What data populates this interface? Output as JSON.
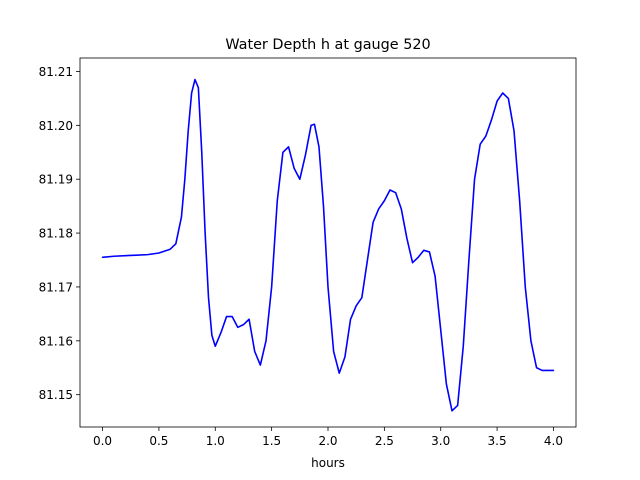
{
  "chart_data": {
    "type": "line",
    "title": "Water Depth h at gauge 520",
    "xlabel": "hours",
    "ylabel": "",
    "xlim": [
      -0.2,
      4.2
    ],
    "ylim": [
      81.144,
      81.2125
    ],
    "xticks": [
      0.0,
      0.5,
      1.0,
      1.5,
      2.0,
      2.5,
      3.0,
      3.5,
      4.0
    ],
    "xtick_labels": [
      "0.0",
      "0.5",
      "1.0",
      "1.5",
      "2.0",
      "2.5",
      "3.0",
      "3.5",
      "4.0"
    ],
    "yticks": [
      81.15,
      81.16,
      81.17,
      81.18,
      81.19,
      81.2,
      81.21
    ],
    "ytick_labels": [
      "81.15",
      "81.16",
      "81.17",
      "81.18",
      "81.19",
      "81.20",
      "81.21"
    ],
    "grid": false,
    "series": [
      {
        "color": "#0000ff",
        "x": [
          0.0,
          0.1,
          0.2,
          0.3,
          0.4,
          0.5,
          0.6,
          0.65,
          0.7,
          0.73,
          0.76,
          0.79,
          0.82,
          0.85,
          0.88,
          0.91,
          0.94,
          0.97,
          1.0,
          1.05,
          1.1,
          1.15,
          1.2,
          1.25,
          1.3,
          1.35,
          1.4,
          1.45,
          1.5,
          1.55,
          1.6,
          1.65,
          1.7,
          1.75,
          1.8,
          1.85,
          1.88,
          1.92,
          1.96,
          2.0,
          2.05,
          2.1,
          2.15,
          2.2,
          2.25,
          2.3,
          2.35,
          2.4,
          2.45,
          2.5,
          2.55,
          2.6,
          2.65,
          2.7,
          2.75,
          2.8,
          2.85,
          2.9,
          2.95,
          3.0,
          3.05,
          3.1,
          3.15,
          3.2,
          3.25,
          3.3,
          3.35,
          3.4,
          3.45,
          3.5,
          3.55,
          3.6,
          3.65,
          3.7,
          3.75,
          3.8,
          3.85,
          3.9,
          3.95,
          4.0
        ],
        "y": [
          81.1755,
          81.1757,
          81.1758,
          81.1759,
          81.176,
          81.1763,
          81.177,
          81.178,
          81.183,
          81.19,
          81.199,
          81.206,
          81.2085,
          81.207,
          81.195,
          81.18,
          81.168,
          81.161,
          81.159,
          81.1615,
          81.1645,
          81.1645,
          81.1625,
          81.163,
          81.164,
          81.158,
          81.1555,
          81.16,
          81.17,
          81.186,
          81.195,
          81.196,
          81.192,
          81.19,
          81.1945,
          81.2,
          81.2002,
          81.196,
          81.185,
          81.17,
          81.158,
          81.154,
          81.157,
          81.164,
          81.1665,
          81.168,
          81.175,
          81.182,
          81.1845,
          81.186,
          81.188,
          81.1875,
          81.1845,
          81.179,
          81.1745,
          81.1755,
          81.1768,
          81.1765,
          81.172,
          81.162,
          81.152,
          81.147,
          81.148,
          81.159,
          81.175,
          81.19,
          81.1965,
          81.198,
          81.201,
          81.2045,
          81.206,
          81.205,
          81.199,
          81.186,
          81.17,
          81.16,
          81.155,
          81.1545,
          81.1545,
          81.1545
        ]
      }
    ]
  }
}
